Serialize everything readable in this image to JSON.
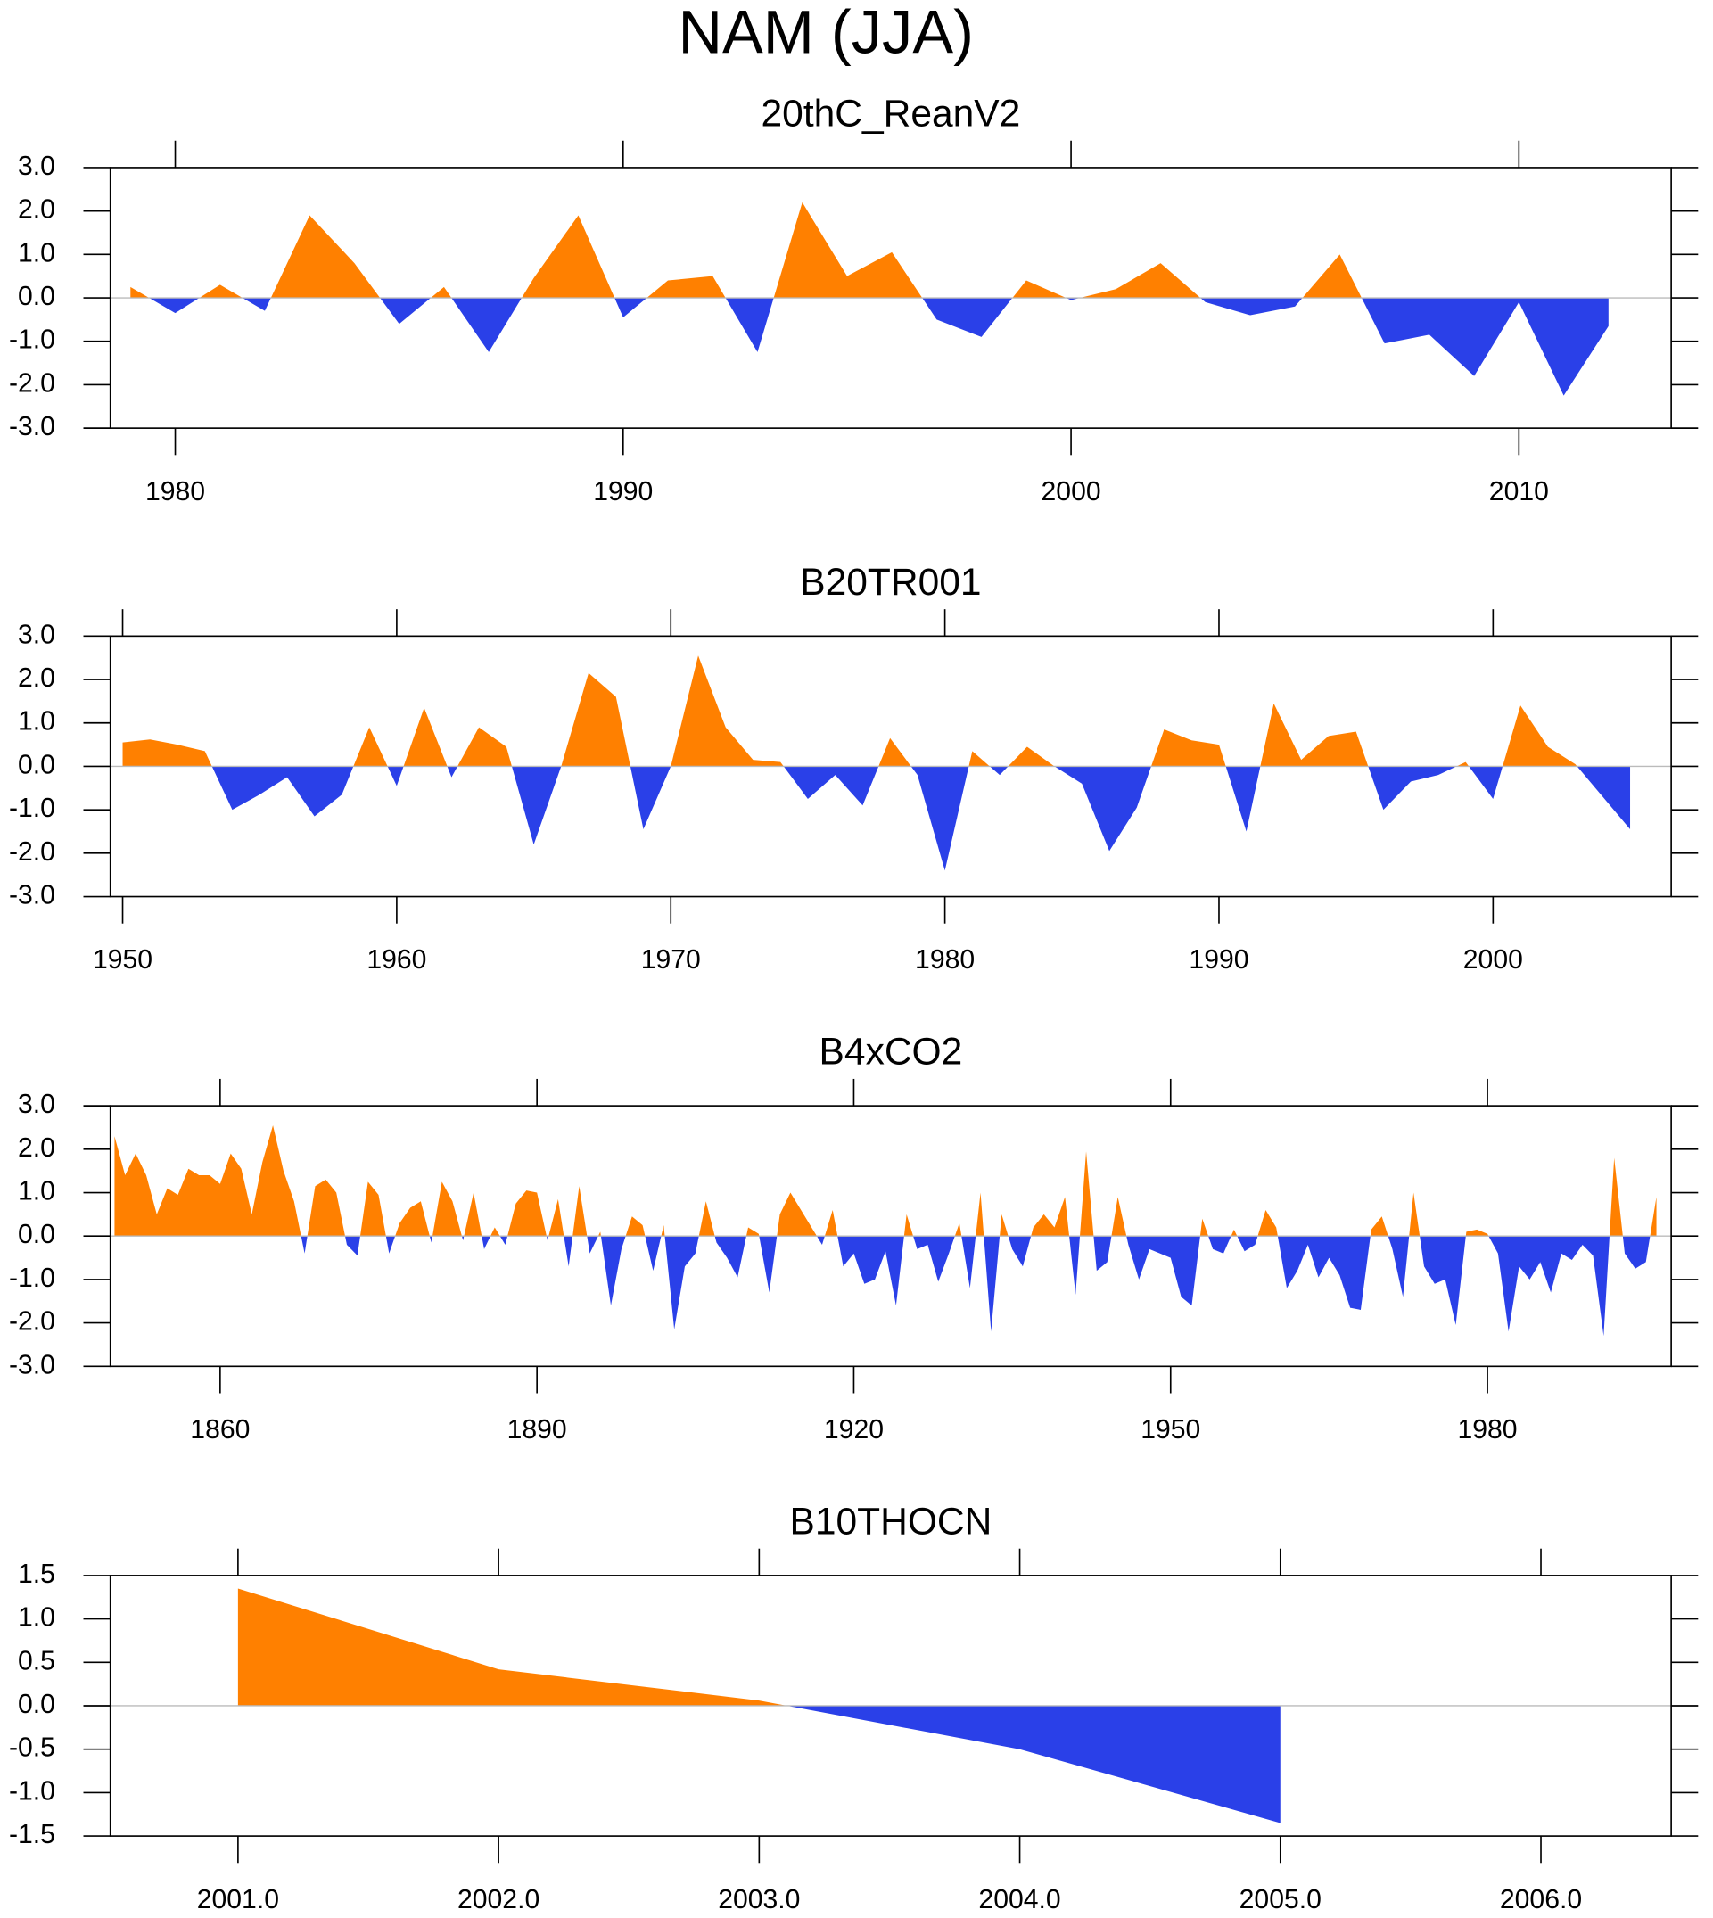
{
  "title": "NAM (JJA)",
  "chart_data": [
    {
      "type": "area",
      "title": "20thC_ReanV2",
      "positive_color": "#ff8000",
      "negative_color": "#2a40e8",
      "x": [
        1979,
        1980,
        1981,
        1982,
        1983,
        1984,
        1985,
        1986,
        1987,
        1988,
        1989,
        1990,
        1991,
        1992,
        1993,
        1994,
        1995,
        1996,
        1997,
        1998,
        1999,
        2000,
        2001,
        2002,
        2003,
        2004,
        2005,
        2006,
        2007,
        2008,
        2009,
        2010,
        2011,
        2012
      ],
      "values": [
        0.25,
        -0.35,
        0.3,
        -0.3,
        1.9,
        0.8,
        -0.6,
        0.25,
        -1.25,
        0.45,
        1.9,
        -0.45,
        0.4,
        0.5,
        -1.25,
        2.2,
        0.5,
        1.05,
        -0.5,
        -0.9,
        0.4,
        -0.05,
        0.2,
        0.8,
        -0.1,
        -0.4,
        -0.2,
        1.0,
        -1.05,
        -0.85,
        -1.8,
        -0.1,
        -2.25,
        -0.65
      ],
      "xlim": [
        1978.55,
        2013.4
      ],
      "xticks": [
        1980,
        1990,
        2000,
        2010
      ],
      "ylim": [
        -3,
        3
      ],
      "yticks": [
        {
          "value": -3,
          "label": "-3.0"
        },
        {
          "value": -2,
          "label": "-2.0"
        },
        {
          "value": -1,
          "label": "-1.0"
        },
        {
          "value": 0,
          "label": "0.0"
        },
        {
          "value": 1,
          "label": "1.0"
        },
        {
          "value": 2,
          "label": "2.0"
        },
        {
          "value": 3,
          "label": "3.0"
        }
      ]
    },
    {
      "type": "area",
      "title": "B20TR001",
      "positive_color": "#ff8000",
      "negative_color": "#2a40e8",
      "x": [
        1950,
        1951,
        1952,
        1953,
        1954,
        1955,
        1956,
        1957,
        1958,
        1959,
        1960,
        1961,
        1962,
        1963,
        1964,
        1965,
        1966,
        1967,
        1968,
        1969,
        1970,
        1971,
        1972,
        1973,
        1974,
        1975,
        1976,
        1977,
        1978,
        1979,
        1980,
        1981,
        1982,
        1983,
        1984,
        1985,
        1986,
        1987,
        1988,
        1989,
        1990,
        1991,
        1992,
        1993,
        1994,
        1995,
        1996,
        1997,
        1998,
        1999,
        2000,
        2001,
        2002,
        2003,
        2004,
        2005
      ],
      "values": [
        0.55,
        0.62,
        0.5,
        0.35,
        -1.0,
        -0.65,
        -0.25,
        -1.15,
        -0.65,
        0.9,
        -0.45,
        1.35,
        -0.25,
        0.9,
        0.45,
        -1.8,
        0.0,
        2.15,
        1.6,
        -1.45,
        0.0,
        2.55,
        0.9,
        0.15,
        0.1,
        -0.75,
        -0.2,
        -0.9,
        0.65,
        -0.2,
        -2.4,
        0.35,
        -0.2,
        0.45,
        0.0,
        -0.4,
        -1.95,
        -0.95,
        0.85,
        0.6,
        0.5,
        -1.5,
        1.45,
        0.15,
        0.7,
        0.8,
        -1.0,
        -0.35,
        -0.2,
        0.1,
        -0.75,
        1.4,
        0.45,
        0.05,
        -0.7,
        -1.45
      ],
      "xlim": [
        1949.55,
        2006.5
      ],
      "xticks": [
        1950,
        1960,
        1970,
        1980,
        1990,
        2000
      ],
      "ylim": [
        -3,
        3
      ],
      "yticks": [
        {
          "value": -3,
          "label": "-3.0"
        },
        {
          "value": -2,
          "label": "-2.0"
        },
        {
          "value": -1,
          "label": "-1.0"
        },
        {
          "value": 0,
          "label": "0.0"
        },
        {
          "value": 1,
          "label": "1.0"
        },
        {
          "value": 2,
          "label": "2.0"
        },
        {
          "value": 3,
          "label": "3.0"
        }
      ]
    },
    {
      "type": "area",
      "title": "B4xCO2",
      "positive_color": "#ff8000",
      "negative_color": "#2a40e8",
      "x": [
        1850,
        1851,
        1852,
        1853,
        1854,
        1855,
        1856,
        1857,
        1858,
        1859,
        1860,
        1861,
        1862,
        1863,
        1864,
        1865,
        1866,
        1867,
        1868,
        1869,
        1870,
        1871,
        1872,
        1873,
        1874,
        1875,
        1876,
        1877,
        1878,
        1879,
        1880,
        1881,
        1882,
        1883,
        1884,
        1885,
        1886,
        1887,
        1888,
        1889,
        1890,
        1891,
        1892,
        1893,
        1894,
        1895,
        1896,
        1897,
        1898,
        1899,
        1900,
        1901,
        1902,
        1903,
        1904,
        1905,
        1906,
        1907,
        1908,
        1909,
        1910,
        1911,
        1912,
        1913,
        1914,
        1915,
        1916,
        1917,
        1918,
        1919,
        1920,
        1921,
        1922,
        1923,
        1924,
        1925,
        1926,
        1927,
        1928,
        1929,
        1930,
        1931,
        1932,
        1933,
        1934,
        1935,
        1936,
        1937,
        1938,
        1939,
        1940,
        1941,
        1942,
        1943,
        1944,
        1945,
        1946,
        1947,
        1948,
        1949,
        1950,
        1951,
        1952,
        1953,
        1954,
        1955,
        1956,
        1957,
        1958,
        1959,
        1960,
        1961,
        1962,
        1963,
        1964,
        1965,
        1966,
        1967,
        1968,
        1969,
        1970,
        1971,
        1972,
        1973,
        1974,
        1975,
        1976,
        1977,
        1978,
        1979,
        1980,
        1981,
        1982,
        1983,
        1984,
        1985,
        1986,
        1987,
        1988,
        1989,
        1990,
        1991,
        1992,
        1993,
        1994,
        1995,
        1996
      ],
      "values": [
        2.3,
        1.4,
        1.9,
        1.4,
        0.5,
        1.1,
        0.95,
        1.55,
        1.4,
        1.4,
        1.2,
        1.9,
        1.55,
        0.5,
        1.7,
        2.55,
        1.5,
        0.8,
        -0.4,
        1.15,
        1.3,
        1.0,
        -0.2,
        -0.45,
        1.25,
        0.95,
        -0.4,
        0.3,
        0.65,
        0.8,
        -0.15,
        1.25,
        0.8,
        -0.1,
        1.0,
        -0.3,
        0.2,
        -0.2,
        0.75,
        1.05,
        1.0,
        -0.1,
        0.85,
        -0.7,
        1.15,
        -0.4,
        0.1,
        -1.6,
        -0.3,
        0.45,
        0.25,
        -0.8,
        0.25,
        -2.15,
        -0.7,
        -0.4,
        0.8,
        -0.15,
        -0.5,
        -0.95,
        0.2,
        0.05,
        -1.3,
        0.5,
        1.0,
        0.6,
        0.2,
        -0.2,
        0.6,
        -0.7,
        -0.4,
        -1.1,
        -1.0,
        -0.35,
        -1.6,
        0.5,
        -0.3,
        -0.2,
        -1.05,
        -0.4,
        0.3,
        -1.2,
        1.0,
        -2.2,
        0.5,
        -0.3,
        -0.7,
        0.2,
        0.5,
        0.2,
        0.9,
        -1.35,
        1.95,
        -0.8,
        -0.6,
        0.9,
        -0.2,
        -1.0,
        -0.3,
        -0.4,
        -0.5,
        -1.4,
        -1.6,
        0.4,
        -0.3,
        -0.4,
        0.15,
        -0.35,
        -0.2,
        0.6,
        0.2,
        -1.2,
        -0.8,
        -0.2,
        -0.95,
        -0.5,
        -0.9,
        -1.65,
        -1.7,
        0.15,
        0.45,
        -0.3,
        -1.4,
        1.0,
        -0.7,
        -1.1,
        -1.0,
        -2.05,
        0.1,
        0.15,
        0.05,
        -0.4,
        -2.2,
        -0.7,
        -1.0,
        -0.6,
        -1.3,
        -0.4,
        -0.55,
        -0.2,
        -0.45,
        -2.3,
        1.8,
        -0.4,
        -0.75,
        -0.6,
        0.9
      ],
      "xlim": [
        1849.6,
        1997.4
      ],
      "xticks": [
        1860,
        1890,
        1920,
        1950,
        1980
      ],
      "ylim": [
        -3,
        3
      ],
      "yticks": [
        {
          "value": -3,
          "label": "-3.0"
        },
        {
          "value": -2,
          "label": "-2.0"
        },
        {
          "value": -1,
          "label": "-1.0"
        },
        {
          "value": 0,
          "label": "0.0"
        },
        {
          "value": 1,
          "label": "1.0"
        },
        {
          "value": 2,
          "label": "2.0"
        },
        {
          "value": 3,
          "label": "3.0"
        }
      ]
    },
    {
      "type": "area",
      "title": "B10THOCN",
      "positive_color": "#ff8000",
      "negative_color": "#2a40e8",
      "x": [
        2001,
        2002,
        2003,
        2004,
        2005
      ],
      "values": [
        1.35,
        0.42,
        0.06,
        -0.5,
        -1.35
      ],
      "xlim": [
        2000.51,
        2006.5
      ],
      "xticks": [
        {
          "value": 2001,
          "label": "2001.0"
        },
        {
          "value": 2002,
          "label": "2002.0"
        },
        {
          "value": 2003,
          "label": "2003.0"
        },
        {
          "value": 2004,
          "label": "2004.0"
        },
        {
          "value": 2005,
          "label": "2005.0"
        },
        {
          "value": 2006,
          "label": "2006.0"
        }
      ],
      "ylim": [
        -1.5,
        1.5
      ],
      "yticks": [
        -1.5,
        {
          "value": -1,
          "label": "-1.0"
        },
        -0.5,
        {
          "value": 0,
          "label": "0.0"
        },
        0.5,
        {
          "value": 1,
          "label": "1.0"
        },
        1.5
      ]
    }
  ]
}
